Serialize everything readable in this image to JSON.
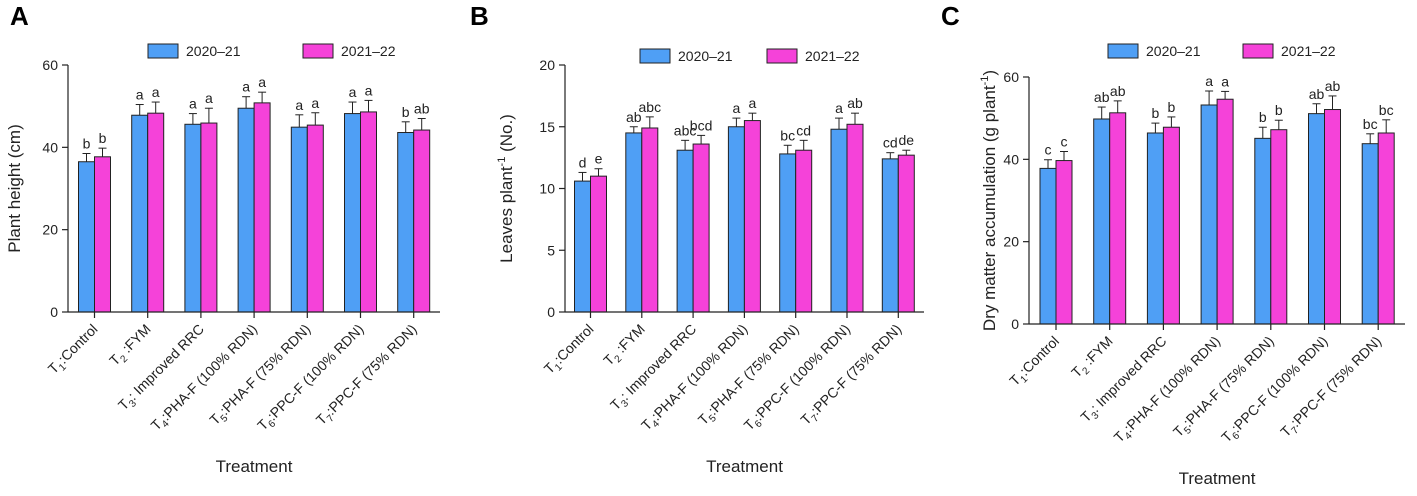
{
  "colors": {
    "series1": "#4f9ff5",
    "series2": "#f542d9",
    "axis": "#222222",
    "bar_edge": "#222222"
  },
  "chart_data": [
    {
      "type": "bar",
      "panel": "A",
      "title": "",
      "xlabel": "Treatment",
      "ylabel": "Plant height (cm)",
      "ylabel_sup": "",
      "ylabel_after": "",
      "ylim": [
        0,
        60
      ],
      "yticks": [
        0,
        20,
        40,
        60
      ],
      "categories": [
        {
          "pre": "T",
          "sub": "1",
          "post": ":Control"
        },
        {
          "pre": "T",
          "sub": "2",
          "post": " :FYM"
        },
        {
          "pre": "T",
          "sub": "3",
          "post": ": Improved RRC"
        },
        {
          "pre": "T",
          "sub": "4",
          "post": ":PHA-F (100% RDN)"
        },
        {
          "pre": "T",
          "sub": "5",
          "post": ":PHA-F (75% RDN)"
        },
        {
          "pre": "T",
          "sub": "6",
          "post": ":PPC-F (100% RDN)"
        },
        {
          "pre": "T",
          "sub": "7",
          "post": ":PPC-F (75% RDN)"
        }
      ],
      "series": [
        {
          "name": "2020–21",
          "values": [
            36.5,
            47.8,
            45.6,
            49.5,
            44.9,
            48.2,
            43.6
          ],
          "errors": [
            2.0,
            2.6,
            2.6,
            2.8,
            3.0,
            2.8,
            2.6
          ],
          "letters": [
            "b",
            "a",
            "a",
            "a",
            "a",
            "a",
            "b"
          ]
        },
        {
          "name": "2021–22",
          "values": [
            37.7,
            48.3,
            45.9,
            50.8,
            45.4,
            48.6,
            44.2
          ],
          "errors": [
            2.1,
            2.7,
            3.6,
            2.6,
            3.0,
            2.8,
            2.8
          ],
          "letters": [
            "b",
            "a",
            "a",
            "a",
            "a",
            "a",
            "ab"
          ]
        }
      ]
    },
    {
      "type": "bar",
      "panel": "B",
      "title": "",
      "xlabel": "Treatment",
      "ylabel": "Leaves plant",
      "ylabel_sup": "-1",
      "ylabel_after": " (No.)",
      "ylim": [
        0,
        20
      ],
      "yticks": [
        0,
        5,
        10,
        15,
        20
      ],
      "categories": [
        {
          "pre": "T",
          "sub": "1",
          "post": ":Control"
        },
        {
          "pre": "T",
          "sub": "2",
          "post": " :FYM"
        },
        {
          "pre": "T",
          "sub": "3",
          "post": ": Improved RRC"
        },
        {
          "pre": "T",
          "sub": "4",
          "post": ":PHA-F (100% RDN)"
        },
        {
          "pre": "T",
          "sub": "5",
          "post": ":PHA-F (75% RDN)"
        },
        {
          "pre": "T",
          "sub": "6",
          "post": ":PPC-F (100% RDN)"
        },
        {
          "pre": "T",
          "sub": "7",
          "post": ":PPC-F (75% RDN)"
        }
      ],
      "series": [
        {
          "name": "2020–21",
          "values": [
            10.6,
            14.5,
            13.1,
            15.0,
            12.8,
            14.8,
            12.4
          ],
          "errors": [
            0.7,
            0.5,
            0.8,
            0.7,
            0.7,
            0.9,
            0.5
          ],
          "letters": [
            "d",
            "ab",
            "abc",
            "a",
            "bc",
            "a",
            "cd"
          ]
        },
        {
          "name": "2021–22",
          "values": [
            11.0,
            14.9,
            13.6,
            15.5,
            13.1,
            15.2,
            12.7
          ],
          "errors": [
            0.6,
            0.9,
            0.7,
            0.6,
            0.8,
            0.9,
            0.4
          ],
          "letters": [
            "e",
            "abc",
            "bcd",
            "a",
            "cd",
            "ab",
            "de"
          ]
        }
      ]
    },
    {
      "type": "bar",
      "panel": "C",
      "title": "",
      "xlabel": "Treatment",
      "ylabel": "Dry matter accumulation (g plant",
      "ylabel_sup": "-1",
      "ylabel_after": ")",
      "ylim": [
        0,
        60
      ],
      "yticks": [
        0,
        20,
        40,
        60
      ],
      "categories": [
        {
          "pre": "T",
          "sub": "1",
          "post": ":Control"
        },
        {
          "pre": "T",
          "sub": "2",
          "post": " :FYM"
        },
        {
          "pre": "T",
          "sub": "3",
          "post": ": Improved RRC"
        },
        {
          "pre": "T",
          "sub": "4",
          "post": ":PHA-F (100% RDN)"
        },
        {
          "pre": "T",
          "sub": "5",
          "post": ":PHA-F (75% RDN)"
        },
        {
          "pre": "T",
          "sub": "6",
          "post": ":PPC-F (100% RDN)"
        },
        {
          "pre": "T",
          "sub": "7",
          "post": ":PPC-F (75% RDN)"
        }
      ],
      "series": [
        {
          "name": "2020–21",
          "values": [
            37.8,
            49.8,
            46.4,
            53.2,
            45.1,
            51.1,
            43.8
          ],
          "errors": [
            2.1,
            2.9,
            2.4,
            3.4,
            2.7,
            2.4,
            2.4
          ],
          "letters": [
            "c",
            "ab",
            "b",
            "a",
            "b",
            "ab",
            "bc"
          ]
        },
        {
          "name": "2021–22",
          "values": [
            39.7,
            51.3,
            47.8,
            54.6,
            47.2,
            52.1,
            46.4
          ],
          "errors": [
            2.2,
            2.9,
            2.5,
            1.9,
            2.3,
            3.3,
            3.2
          ],
          "letters": [
            "c",
            "ab",
            "b",
            "a",
            "b",
            "ab",
            "bc"
          ]
        }
      ]
    }
  ]
}
